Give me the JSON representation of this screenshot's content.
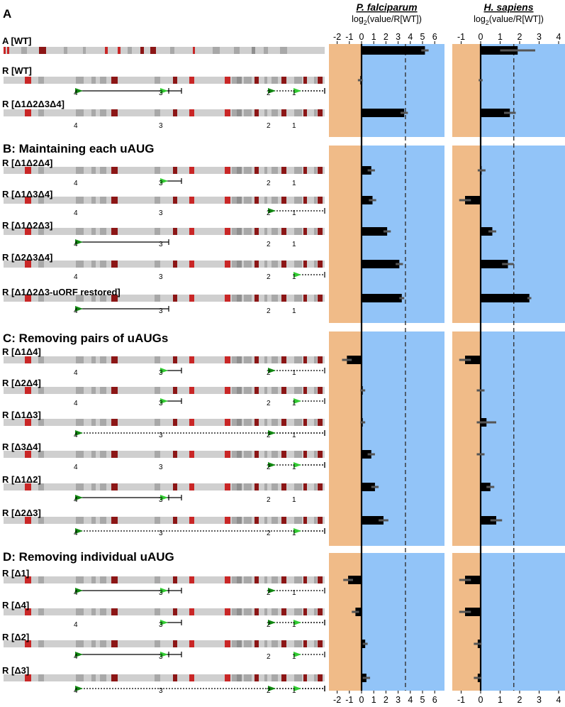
{
  "chart_data": {
    "type": "bar",
    "orientation": "horizontal",
    "panel_titles": [
      "P. falciparum",
      "H. sapiens"
    ],
    "x_axis_label": "log2(value/R[WT])",
    "sections": [
      {
        "label": "A",
        "constructs": [
          "A [WT]",
          "R [WT]",
          "R [Δ1Δ2Δ3Δ4]"
        ]
      },
      {
        "label": "B: Maintaining each uAUG",
        "constructs": [
          "R [Δ1Δ2Δ4]",
          "R [Δ1Δ3Δ4]",
          "R [Δ1Δ2Δ3]",
          "R [Δ2Δ3Δ4]",
          "R [Δ1Δ2Δ3-uORF restored]"
        ]
      },
      {
        "label": "C: Removing pairs of uAUGs",
        "constructs": [
          "R [Δ1Δ4]",
          "R [Δ2Δ4]",
          "R [Δ1Δ3]",
          "R [Δ3Δ4]",
          "R [Δ1Δ2]",
          "R [Δ2Δ3]"
        ]
      },
      {
        "label": "D: Removing individual uAUG",
        "constructs": [
          "R [Δ1]",
          "R [Δ4]",
          "R [Δ2]",
          "R [Δ3]"
        ]
      }
    ],
    "uaug_marker_labels": [
      "4",
      "3",
      "2",
      "1"
    ],
    "series": [
      {
        "name": "P. falciparum",
        "xlim": [
          -3,
          6.5
        ],
        "ticks": [
          -2,
          -1,
          0,
          1,
          2,
          3,
          4,
          5,
          6
        ],
        "reference_line": 3.6,
        "values": [
          5.2,
          -0.1,
          3.5,
          0.8,
          0.9,
          2.1,
          3.1,
          3.3,
          -1.2,
          0.1,
          0.1,
          0.8,
          1.1,
          1.8,
          -1.1,
          -0.5,
          0.3,
          0.4
        ],
        "errors": [
          0.3,
          0.2,
          0.3,
          0.3,
          0.3,
          0.3,
          0.3,
          0.2,
          0.4,
          0.2,
          0.2,
          0.3,
          0.3,
          0.4,
          0.4,
          0.3,
          0.2,
          0.3
        ]
      },
      {
        "name": "H. sapiens",
        "xlim": [
          -1.5,
          4.2
        ],
        "ticks": [
          -1,
          0,
          1,
          2,
          3,
          4
        ],
        "reference_line": 1.7,
        "values": [
          1.9,
          0.0,
          1.5,
          0.05,
          -0.8,
          0.6,
          1.4,
          2.5,
          -0.8,
          0.0,
          0.3,
          0.0,
          0.5,
          0.8,
          -0.8,
          -0.8,
          -0.15,
          -0.15
        ],
        "errors": [
          0.9,
          0.1,
          0.3,
          0.2,
          0.3,
          0.2,
          0.3,
          0.1,
          0.3,
          0.2,
          0.5,
          0.2,
          0.2,
          0.3,
          0.3,
          0.3,
          0.2,
          0.2
        ]
      }
    ],
    "colors": {
      "negative_region": "#f0bb88",
      "positive_region": "#92c4f8",
      "bar": "#000000",
      "error": "#555555",
      "start_codon": "#118811",
      "start_codon_fill": "#33cc33",
      "red_stripe": "#c92626",
      "dark_red_stripe": "#8c1616"
    }
  }
}
